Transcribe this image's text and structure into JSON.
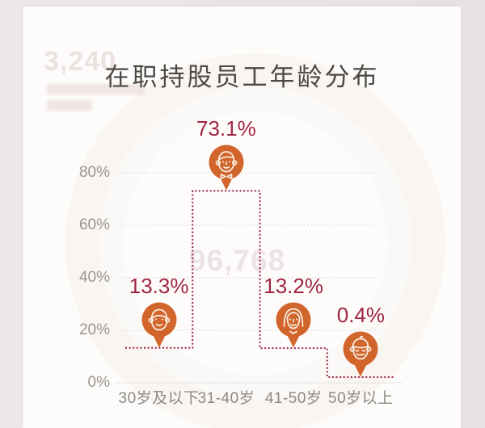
{
  "window": {
    "outer_background": "#e9e5e5",
    "card_background": "#fdfcfb"
  },
  "header": {
    "title": "在职持股员工年龄分布"
  },
  "watermarks": {
    "top_left_number": "3,240",
    "center_number": "96,768"
  },
  "chart_data": {
    "type": "step-line",
    "title": "在职持股员工年龄分布",
    "categories": [
      "30岁及以下",
      "31-40岁",
      "41-50岁",
      "50岁以上"
    ],
    "values": [
      13.3,
      73.1,
      13.2,
      0.4
    ],
    "value_labels": [
      "13.3%",
      "73.1%",
      "13.2%",
      "0.4%"
    ],
    "marker_icons": [
      "young-adult-face-icon",
      "man-bowtie-face-icon",
      "woman-face-icon",
      "senior-face-icon"
    ],
    "y_tick_values": [
      0,
      20,
      40,
      60,
      80
    ],
    "y_tick_labels": [
      "0%",
      "20%",
      "40%",
      "60%",
      "80%"
    ],
    "ylim": [
      0,
      86
    ],
    "grid": "horizontal-dotted",
    "legend": "none",
    "colors": {
      "marker_orange": "#d2652b",
      "line_maroon": "#9e2143",
      "value_label_maroon": "#a02443",
      "axis_text_gray": "#9a9590",
      "title_gray": "#4b4845"
    }
  }
}
